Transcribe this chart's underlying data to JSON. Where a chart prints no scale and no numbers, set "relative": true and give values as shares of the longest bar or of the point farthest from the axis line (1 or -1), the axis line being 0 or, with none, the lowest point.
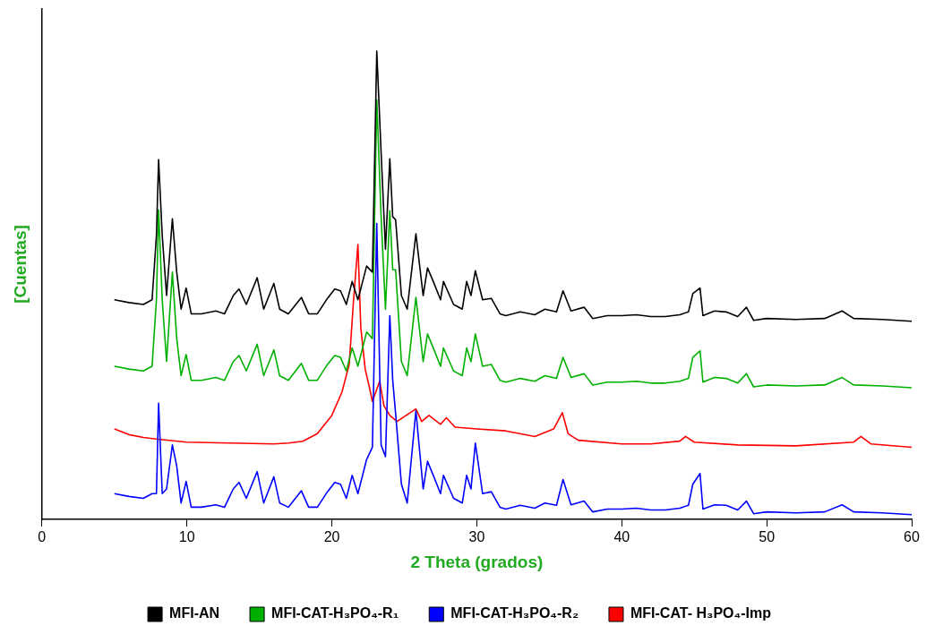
{
  "chart_data": {
    "type": "line",
    "relative": true,
    "xlabel": "2 Theta (grados)",
    "ylabel": "[Cuentas]",
    "xlim": [
      0,
      60
    ],
    "xticks": [
      0,
      10,
      20,
      30,
      40,
      50,
      60
    ],
    "grid": false,
    "legend": "bottom",
    "marker": "none",
    "line_style": "solid",
    "x": [
      5,
      6,
      7,
      7.6,
      7.9,
      8.05,
      8.3,
      8.6,
      9.0,
      9.3,
      9.6,
      9.95,
      10.3,
      11,
      12,
      12.6,
      13.2,
      13.6,
      14.1,
      14.85,
      15.3,
      16.0,
      16.4,
      17,
      17.9,
      18.4,
      19,
      19.7,
      20.2,
      20.6,
      21,
      21.4,
      21.8,
      22.4,
      22.8,
      23.1,
      23.4,
      23.7,
      24.0,
      24.2,
      24.4,
      24.8,
      25.2,
      25.8,
      26.3,
      26.6,
      27.0,
      27.5,
      27.7,
      28.4,
      29.0,
      29.3,
      29.6,
      29.9,
      30.4,
      31.0,
      31.6,
      32,
      33,
      34,
      34.7,
      35.5,
      35.95,
      36.5,
      37.4,
      38,
      39,
      40,
      41,
      42,
      43,
      44,
      44.6,
      44.9,
      45.4,
      45.6,
      46.4,
      47.2,
      48.0,
      48.6,
      49.1,
      50,
      52,
      54,
      55.2,
      56,
      58,
      60
    ],
    "series": [
      {
        "name": "MFI-AN",
        "color": "#000000",
        "values": [
          0.469,
          0.463,
          0.459,
          0.469,
          0.606,
          0.768,
          0.606,
          0.478,
          0.642,
          0.528,
          0.449,
          0.494,
          0.439,
          0.439,
          0.445,
          0.439,
          0.478,
          0.492,
          0.459,
          0.516,
          0.449,
          0.504,
          0.449,
          0.439,
          0.474,
          0.439,
          0.439,
          0.472,
          0.492,
          0.488,
          0.459,
          0.508,
          0.469,
          0.541,
          0.528,
          1.0,
          0.783,
          0.577,
          0.77,
          0.646,
          0.64,
          0.478,
          0.449,
          0.61,
          0.478,
          0.537,
          0.508,
          0.469,
          0.508,
          0.459,
          0.449,
          0.508,
          0.478,
          0.531,
          0.469,
          0.472,
          0.439,
          0.435,
          0.443,
          0.437,
          0.449,
          0.443,
          0.488,
          0.445,
          0.453,
          0.429,
          0.435,
          0.435,
          0.437,
          0.433,
          0.433,
          0.437,
          0.443,
          0.482,
          0.494,
          0.435,
          0.445,
          0.443,
          0.433,
          0.453,
          0.425,
          0.429,
          0.427,
          0.429,
          0.445,
          0.429,
          0.427,
          0.423
        ]
      },
      {
        "name": "MFI-CAT-H₃PO₄-R₁",
        "color": "#00b000",
        "values": [
          0.327,
          0.321,
          0.317,
          0.327,
          0.469,
          0.661,
          0.469,
          0.337,
          0.528,
          0.386,
          0.307,
          0.352,
          0.297,
          0.297,
          0.303,
          0.297,
          0.337,
          0.35,
          0.317,
          0.374,
          0.307,
          0.362,
          0.307,
          0.297,
          0.333,
          0.297,
          0.297,
          0.331,
          0.35,
          0.346,
          0.317,
          0.366,
          0.327,
          0.4,
          0.386,
          0.896,
          0.646,
          0.449,
          0.659,
          0.533,
          0.533,
          0.337,
          0.307,
          0.474,
          0.337,
          0.396,
          0.366,
          0.327,
          0.366,
          0.317,
          0.307,
          0.366,
          0.337,
          0.396,
          0.327,
          0.331,
          0.297,
          0.293,
          0.301,
          0.295,
          0.307,
          0.301,
          0.346,
          0.303,
          0.311,
          0.287,
          0.293,
          0.293,
          0.295,
          0.291,
          0.291,
          0.295,
          0.301,
          0.346,
          0.36,
          0.293,
          0.303,
          0.301,
          0.291,
          0.311,
          0.283,
          0.287,
          0.285,
          0.287,
          0.303,
          0.287,
          0.285,
          0.281
        ]
      },
      {
        "name": "MFI-CAT-H₃PO₄-R₂",
        "color": "#0000ff",
        "values": [
          0.055,
          0.049,
          0.045,
          0.055,
          0.055,
          0.248,
          0.055,
          0.065,
          0.159,
          0.114,
          0.035,
          0.081,
          0.026,
          0.026,
          0.031,
          0.026,
          0.065,
          0.079,
          0.045,
          0.102,
          0.035,
          0.091,
          0.035,
          0.026,
          0.061,
          0.026,
          0.026,
          0.059,
          0.079,
          0.075,
          0.045,
          0.094,
          0.055,
          0.128,
          0.154,
          0.632,
          0.159,
          0.134,
          0.435,
          0.297,
          0.226,
          0.075,
          0.035,
          0.232,
          0.065,
          0.124,
          0.094,
          0.055,
          0.094,
          0.045,
          0.035,
          0.094,
          0.065,
          0.163,
          0.055,
          0.059,
          0.026,
          0.022,
          0.03,
          0.024,
          0.035,
          0.03,
          0.085,
          0.031,
          0.039,
          0.016,
          0.022,
          0.022,
          0.024,
          0.02,
          0.02,
          0.024,
          0.03,
          0.075,
          0.098,
          0.022,
          0.031,
          0.03,
          0.02,
          0.039,
          0.012,
          0.016,
          0.014,
          0.016,
          0.031,
          0.016,
          0.014,
          0.01
        ]
      },
      {
        "name": "MFI-CAT- H₃PO₄-Imp",
        "color": "#ff0000",
        "x": [
          5,
          6,
          7,
          8,
          10,
          13,
          16,
          17,
          18,
          19,
          20,
          20.7,
          21.2,
          21.5,
          21.8,
          22.0,
          22.3,
          22.6,
          22.8,
          23.3,
          23.6,
          24,
          24.5,
          25.8,
          26.2,
          26.7,
          27.5,
          27.9,
          28.5,
          30,
          32,
          34,
          35.3,
          35.9,
          36.3,
          37,
          40,
          42,
          44,
          44.4,
          45,
          48,
          52,
          56,
          56.5,
          57.2,
          60
        ],
        "values": [
          0.193,
          0.181,
          0.175,
          0.171,
          0.165,
          0.163,
          0.161,
          0.163,
          0.167,
          0.183,
          0.222,
          0.272,
          0.331,
          0.469,
          0.587,
          0.409,
          0.321,
          0.281,
          0.252,
          0.295,
          0.242,
          0.222,
          0.209,
          0.236,
          0.209,
          0.222,
          0.203,
          0.217,
          0.197,
          0.193,
          0.189,
          0.177,
          0.193,
          0.228,
          0.183,
          0.169,
          0.161,
          0.161,
          0.167,
          0.177,
          0.165,
          0.159,
          0.157,
          0.165,
          0.177,
          0.161,
          0.154
        ]
      }
    ]
  }
}
